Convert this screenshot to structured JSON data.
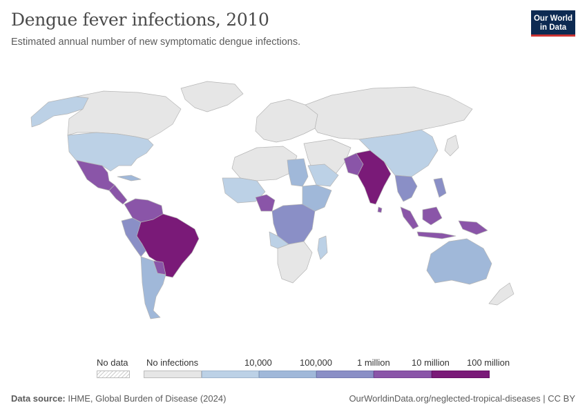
{
  "header": {
    "title": "Dengue fever infections, 2010",
    "subtitle": "Estimated annual number of new symptomatic dengue infections."
  },
  "logo": {
    "line1": "Our World",
    "line2": "in Data"
  },
  "colors": {
    "no_infections": "#e6e6e6",
    "bin1": "#bcd1e6",
    "bin2": "#a0b8d9",
    "bin3": "#8a8fc6",
    "bin4": "#8a55a8",
    "bin5": "#7a1a78",
    "border": "#b5b5b5"
  },
  "legend": {
    "no_data": "No data",
    "no_infections": "No infections",
    "ticks": [
      "10,000",
      "100,000",
      "1 million",
      "10 million",
      "100 million"
    ]
  },
  "footer": {
    "source_label": "Data source:",
    "source_text": " IHME, Global Burden of Disease (2024)",
    "url": "OurWorldinData.org/neglected-tropical-diseases | CC BY"
  },
  "regions": [
    {
      "name": "canada-greenland-russia-europe",
      "bin": "no_infections"
    },
    {
      "name": "usa",
      "bin": "bin1"
    },
    {
      "name": "mexico",
      "bin": "bin4"
    },
    {
      "name": "central-america",
      "bin": "bin4"
    },
    {
      "name": "colombia-venezuela",
      "bin": "bin4"
    },
    {
      "name": "brazil",
      "bin": "bin5"
    },
    {
      "name": "argentina-chile",
      "bin": "bin2"
    },
    {
      "name": "india",
      "bin": "bin5"
    },
    {
      "name": "china",
      "bin": "bin1"
    },
    {
      "name": "indonesia",
      "bin": "bin4"
    },
    {
      "name": "australia",
      "bin": "bin2"
    },
    {
      "name": "nigeria",
      "bin": "bin4"
    },
    {
      "name": "central-africa",
      "bin": "bin3"
    },
    {
      "name": "west-africa",
      "bin": "bin2"
    }
  ]
}
